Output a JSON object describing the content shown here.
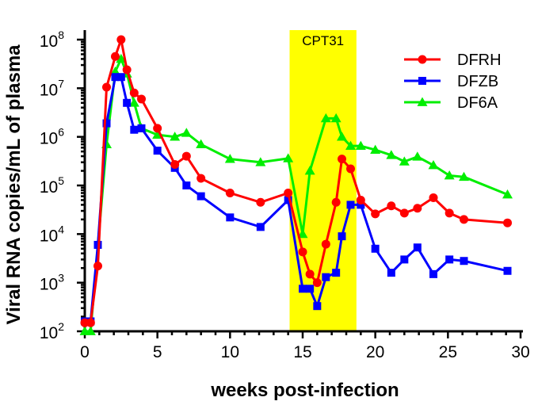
{
  "chart_data": {
    "type": "line",
    "xlabel": "weeks post-infection",
    "ylabel": "Viral RNA copies/mL of plasma",
    "xlim": [
      0,
      30
    ],
    "ylim": [
      100,
      200000000
    ],
    "yscale": "log",
    "x_ticks": [
      0,
      5,
      10,
      15,
      20,
      25,
      30
    ],
    "y_ticks": [
      {
        "value": 100,
        "base": "10",
        "exp": "2"
      },
      {
        "value": 1000,
        "base": "10",
        "exp": "3"
      },
      {
        "value": 10000,
        "base": "10",
        "exp": "4"
      },
      {
        "value": 100000,
        "base": "10",
        "exp": "5"
      },
      {
        "value": 1000000,
        "base": "10",
        "exp": "6"
      },
      {
        "value": 10000000,
        "base": "10",
        "exp": "7"
      },
      {
        "value": 100000000,
        "base": "10",
        "exp": "8"
      }
    ],
    "grid": false,
    "legend_position": "top-right",
    "annotation": {
      "label": "CPT31",
      "x_start": 14.1,
      "x_end": 18.7,
      "color": "#ffff00"
    },
    "series": [
      {
        "name": "DFRH",
        "color": "#ff0000",
        "marker": "circle",
        "x": [
          0,
          0.4,
          0.9,
          1.5,
          2.1,
          2.5,
          2.9,
          3.4,
          3.9,
          5.0,
          6.2,
          7.0,
          8.0,
          10.0,
          12.1,
          14.0,
          15.0,
          15.5,
          16.0,
          16.6,
          17.3,
          17.7,
          18.3,
          19.0,
          20.0,
          21.1,
          22.0,
          22.9,
          24.0,
          25.1,
          26.1,
          29.1
        ],
        "y": [
          150,
          150,
          2200,
          10500000,
          45000000,
          100000000,
          24000000,
          8000000,
          6000000,
          1500000,
          270000,
          400000,
          140000,
          70000,
          45000,
          70000,
          4300,
          1500,
          1000,
          6200,
          45000,
          350000,
          220000,
          50000,
          26000,
          38000,
          27000,
          34000,
          56000,
          27000,
          20000,
          17000
        ]
      },
      {
        "name": "DFZB",
        "color": "#0000ff",
        "marker": "square",
        "x": [
          0,
          0.4,
          0.9,
          1.5,
          2.1,
          2.5,
          2.9,
          3.4,
          3.9,
          5.0,
          6.2,
          7.0,
          8.0,
          10.0,
          12.1,
          14.0,
          15.0,
          15.5,
          16.0,
          16.6,
          17.3,
          17.7,
          18.3,
          19.0,
          20.0,
          21.1,
          22.0,
          22.9,
          24.0,
          25.1,
          26.1,
          29.1
        ],
        "y": [
          160,
          160,
          6000,
          1900000,
          17000000,
          17000000,
          5000000,
          1400000,
          1500000,
          520000,
          230000,
          100000,
          60000,
          22000,
          14000,
          50000,
          750,
          750,
          330,
          1300,
          1600,
          9000,
          40000,
          40000,
          5000,
          1600,
          3000,
          5300,
          1500,
          3000,
          2800,
          1750
        ]
      },
      {
        "name": "DF6A",
        "color": "#00ee00",
        "marker": "triangle",
        "x": [
          0,
          0.4,
          1.5,
          2.1,
          2.5,
          2.9,
          3.4,
          3.9,
          5.0,
          6.2,
          7.0,
          8.0,
          10.0,
          12.1,
          14.0,
          15.0,
          15.5,
          16.6,
          17.3,
          17.7,
          18.3,
          19.0,
          20.0,
          21.1,
          22.0,
          22.9,
          24.0,
          25.1,
          26.1,
          29.1
        ],
        "y": [
          100,
          100,
          700000,
          22000000,
          40000000,
          20000000,
          5000000,
          1500000,
          1100000,
          1000000,
          1200000,
          700000,
          350000,
          300000,
          360000,
          10000,
          200000,
          2400000,
          2400000,
          1000000,
          650000,
          650000,
          540000,
          420000,
          310000,
          390000,
          260000,
          160000,
          150000,
          65000
        ]
      }
    ]
  }
}
